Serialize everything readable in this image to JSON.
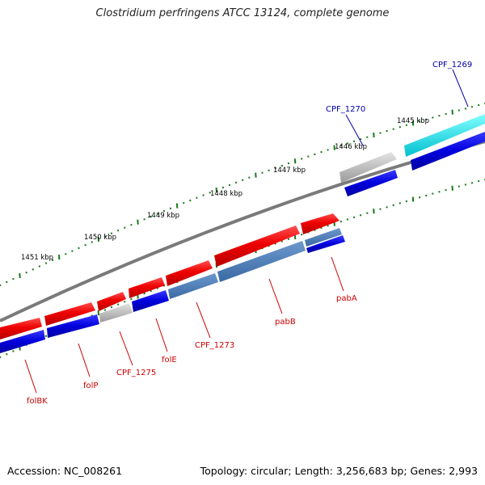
{
  "title": "Clostridium perfringens ATCC 13124, complete genome",
  "footer": {
    "accession": "Accession: NC_008261",
    "summary": "Topology: circular; Length: 3,256,683 bp; Genes: 2,993"
  },
  "ruler_labels": [
    "1445 kbp",
    "1446 kbp",
    "1447 kbp",
    "1448 kbp",
    "1449 kbp",
    "1450 kbp",
    "1451 kbp"
  ],
  "colors": {
    "forward_cds": "#ee0000",
    "reverse_cds": "#0000dd",
    "highlight_reverse": "#4a78b0",
    "pseudo": "#b0b0b0",
    "rna": "#00d8e8",
    "backbone": "#7a7a7a",
    "tick": "#1a7a1a",
    "label_red": "#cc0000",
    "label_blue": "#0000aa"
  },
  "genes": [
    {
      "label": "CPF_1269",
      "color": "blue"
    },
    {
      "label": "CPF_1270",
      "color": "blue"
    },
    {
      "label": "pabA",
      "color": "red"
    },
    {
      "label": "pabB",
      "color": "red"
    },
    {
      "label": "CPF_1273",
      "color": "red"
    },
    {
      "label": "folE",
      "color": "red"
    },
    {
      "label": "CPF_1275",
      "color": "red"
    },
    {
      "label": "folP",
      "color": "red"
    },
    {
      "label": "folBK",
      "color": "red"
    }
  ]
}
